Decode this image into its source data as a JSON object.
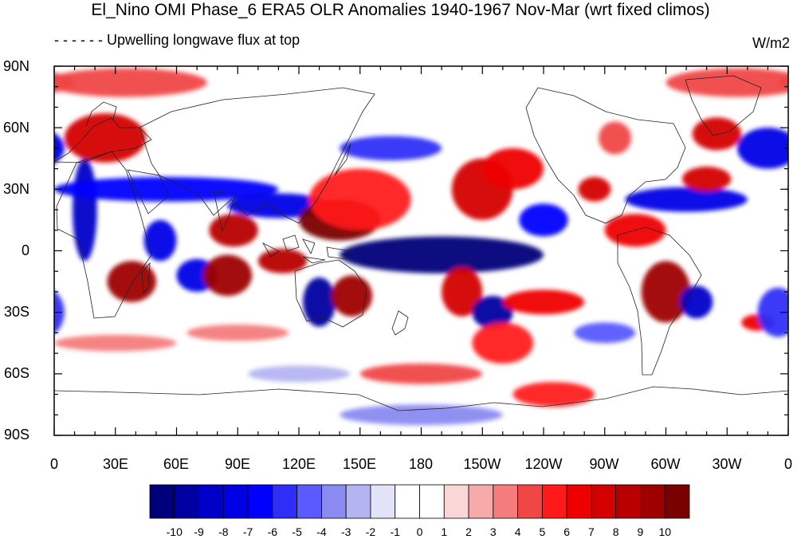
{
  "title": "El_Nino OMI Phase_6 ERA5 OLR Anomalies 1940-1967 Nov-Mar (wrt fixed climos)",
  "subtitle": "Upwelling longwave flux at top",
  "units": "W/m2",
  "lat_labels": [
    "90N",
    "60N",
    "30N",
    "0",
    "30S",
    "60S",
    "90S"
  ],
  "lon_labels": [
    "0",
    "30E",
    "60E",
    "90E",
    "120E",
    "150E",
    "180",
    "150W",
    "120W",
    "90W",
    "60W",
    "30W",
    "0"
  ],
  "colorbar": {
    "labels": [
      "-10",
      "-9",
      "-8",
      "-7",
      "-6",
      "-5",
      "-4",
      "-3",
      "-2",
      "-1",
      "0",
      "1",
      "2",
      "3",
      "4",
      "5",
      "6",
      "7",
      "8",
      "9",
      "10"
    ],
    "colors": [
      "#00007a",
      "#0000a0",
      "#0000c8",
      "#0000e6",
      "#0000ff",
      "#2e2ef8",
      "#5a5aff",
      "#8a8af2",
      "#b4b4f2",
      "#e2e2f8",
      "#ffffff",
      "#ffffff",
      "#fad6d6",
      "#f8aaaa",
      "#f47c7c",
      "#f04646",
      "#ff1a1a",
      "#ee0000",
      "#d40000",
      "#b80000",
      "#9e0000",
      "#7a0000"
    ]
  },
  "field_blobs": [
    {
      "lon": 15,
      "lat": 20,
      "rx": 6,
      "ry": 25,
      "v": -8
    },
    {
      "lon": 25,
      "lat": 55,
      "rx": 20,
      "ry": 12,
      "v": 7
    },
    {
      "lon": 35,
      "lat": 82,
      "rx": 40,
      "ry": 7,
      "v": 4
    },
    {
      "lon": 38,
      "lat": -15,
      "rx": 12,
      "ry": 10,
      "v": 9
    },
    {
      "lon": 52,
      "lat": 5,
      "rx": 8,
      "ry": 10,
      "v": -7
    },
    {
      "lon": 55,
      "lat": 30,
      "rx": 55,
      "ry": 6,
      "v": -6
    },
    {
      "lon": 70,
      "lat": -12,
      "rx": 10,
      "ry": 8,
      "v": -7
    },
    {
      "lon": 85,
      "lat": -12,
      "rx": 12,
      "ry": 10,
      "v": 9
    },
    {
      "lon": 88,
      "lat": 10,
      "rx": 12,
      "ry": 8,
      "v": 8
    },
    {
      "lon": 110,
      "lat": 22,
      "rx": 25,
      "ry": 6,
      "v": -7
    },
    {
      "lon": 112,
      "lat": -5,
      "rx": 12,
      "ry": 6,
      "v": 8
    },
    {
      "lon": 130,
      "lat": -25,
      "rx": 8,
      "ry": 12,
      "v": -9
    },
    {
      "lon": 140,
      "lat": 15,
      "rx": 20,
      "ry": 10,
      "v": 10
    },
    {
      "lon": 146,
      "lat": -22,
      "rx": 10,
      "ry": 10,
      "v": 9
    },
    {
      "lon": 150,
      "lat": 25,
      "rx": 25,
      "ry": 15,
      "v": 5
    },
    {
      "lon": 165,
      "lat": 50,
      "rx": 25,
      "ry": 6,
      "v": -5
    },
    {
      "lon": 190,
      "lat": -2,
      "rx": 50,
      "ry": 9,
      "v": -10
    },
    {
      "lon": 200,
      "lat": -20,
      "rx": 10,
      "ry": 12,
      "v": 7
    },
    {
      "lon": 210,
      "lat": 30,
      "rx": 15,
      "ry": 15,
      "v": 7
    },
    {
      "lon": 215,
      "lat": -30,
      "rx": 10,
      "ry": 8,
      "v": -9
    },
    {
      "lon": 220,
      "lat": -45,
      "rx": 15,
      "ry": 10,
      "v": 5
    },
    {
      "lon": 225,
      "lat": 40,
      "rx": 15,
      "ry": 10,
      "v": 6
    },
    {
      "lon": 240,
      "lat": -25,
      "rx": 20,
      "ry": 6,
      "v": 6
    },
    {
      "lon": 240,
      "lat": 15,
      "rx": 12,
      "ry": 8,
      "v": -6
    },
    {
      "lon": 245,
      "lat": -70,
      "rx": 20,
      "ry": 6,
      "v": 5
    },
    {
      "lon": 265,
      "lat": 30,
      "rx": 8,
      "ry": 6,
      "v": 7
    },
    {
      "lon": 275,
      "lat": 55,
      "rx": 8,
      "ry": 8,
      "v": 4
    },
    {
      "lon": 285,
      "lat": 10,
      "rx": 15,
      "ry": 8,
      "v": 6
    },
    {
      "lon": 300,
      "lat": -20,
      "rx": 12,
      "ry": 15,
      "v": 9
    },
    {
      "lon": 310,
      "lat": 25,
      "rx": 30,
      "ry": 6,
      "v": -7
    },
    {
      "lon": 315,
      "lat": -25,
      "rx": 8,
      "ry": 8,
      "v": -8
    },
    {
      "lon": 320,
      "lat": 35,
      "rx": 12,
      "ry": 6,
      "v": 7
    },
    {
      "lon": 325,
      "lat": 57,
      "rx": 12,
      "ry": 8,
      "v": 7
    },
    {
      "lon": 335,
      "lat": 82,
      "rx": 35,
      "ry": 7,
      "v": 4
    },
    {
      "lon": 345,
      "lat": -35,
      "rx": 8,
      "ry": 4,
      "v": 6
    },
    {
      "lon": 350,
      "lat": 50,
      "rx": 15,
      "ry": 10,
      "v": -7
    },
    {
      "lon": 355,
      "lat": -30,
      "rx": 10,
      "ry": 12,
      "v": -5
    },
    {
      "lon": 30,
      "lat": -45,
      "rx": 30,
      "ry": 4,
      "v": 3
    },
    {
      "lon": 90,
      "lat": -40,
      "rx": 25,
      "ry": 4,
      "v": 3
    },
    {
      "lon": 180,
      "lat": -60,
      "rx": 30,
      "ry": 5,
      "v": 4
    },
    {
      "lon": 120,
      "lat": -60,
      "rx": 25,
      "ry": 4,
      "v": -2
    },
    {
      "lon": 180,
      "lat": -80,
      "rx": 40,
      "ry": 5,
      "v": -3
    },
    {
      "lon": 270,
      "lat": -40,
      "rx": 15,
      "ry": 5,
      "v": -4
    }
  ]
}
